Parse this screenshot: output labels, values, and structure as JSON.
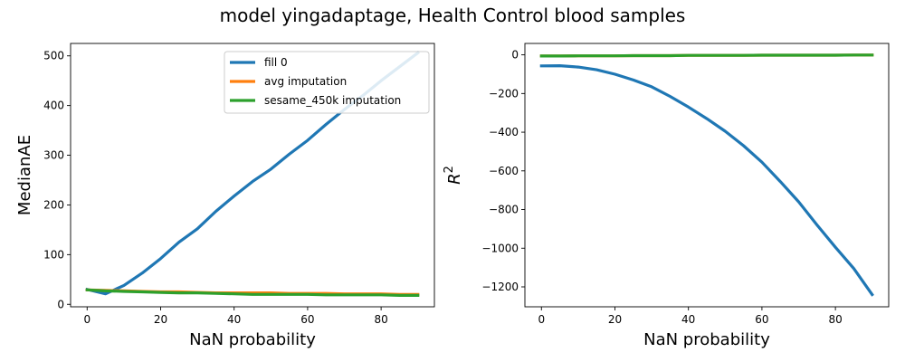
{
  "figure_title": "model yingadaptage, Health Control blood samples",
  "colors": {
    "fill0": "#1f77b4",
    "avg": "#ff7f0e",
    "sesame": "#2ca02c"
  },
  "chart_data": [
    {
      "type": "line",
      "xlabel": "NaN probability",
      "ylabel": "MedianAE",
      "xlim": [
        -4.5,
        94.5
      ],
      "ylim": [
        -5,
        525
      ],
      "xticks": [
        0,
        20,
        40,
        60,
        80
      ],
      "yticks": [
        0,
        100,
        200,
        300,
        400,
        500
      ],
      "grid": false,
      "legend_position": "top-right",
      "x": [
        0,
        5,
        10,
        15,
        20,
        25,
        30,
        35,
        40,
        45,
        50,
        55,
        60,
        65,
        70,
        75,
        80,
        85,
        90
      ],
      "series": [
        {
          "name": "fill 0",
          "color": "#1f77b4",
          "values": [
            30,
            21,
            38,
            63,
            92,
            125,
            152,
            187,
            218,
            247,
            272,
            302,
            330,
            362,
            392,
            420,
            450,
            478,
            506
          ]
        },
        {
          "name": "avg imputation",
          "color": "#ff7f0e",
          "values": [
            29,
            28,
            27,
            26,
            25,
            25,
            24,
            23,
            23,
            23,
            23,
            22,
            22,
            22,
            21,
            21,
            21,
            20,
            20
          ]
        },
        {
          "name": "sesame_450k imputation",
          "color": "#2ca02c",
          "values": [
            29,
            27,
            26,
            25,
            24,
            23,
            23,
            22,
            21,
            20,
            20,
            20,
            20,
            19,
            19,
            19,
            19,
            18,
            18
          ]
        }
      ]
    },
    {
      "type": "line",
      "xlabel": "NaN probability",
      "ylabel": "R",
      "ylabel_superscript": "2",
      "xlim": [
        -4.5,
        94.5
      ],
      "ylim": [
        -1303,
        59
      ],
      "xticks": [
        0,
        20,
        40,
        60,
        80
      ],
      "yticks": [
        0,
        -200,
        -400,
        -600,
        -800,
        -1000,
        -1200
      ],
      "ytick_labels": [
        "0",
        "−200",
        "−400",
        "−600",
        "−800",
        "−1000",
        "−1200"
      ],
      "grid": false,
      "x": [
        0,
        5,
        10,
        15,
        20,
        25,
        30,
        35,
        40,
        45,
        50,
        55,
        60,
        65,
        70,
        75,
        80,
        85,
        90
      ],
      "series": [
        {
          "color": "#1f77b4",
          "values": [
            -57,
            -56,
            -63,
            -77,
            -100,
            -130,
            -165,
            -215,
            -270,
            -330,
            -395,
            -470,
            -555,
            -655,
            -760,
            -880,
            -995,
            -1105,
            -1240
          ]
        },
        {
          "color": "#ff7f0e",
          "values": [
            -6,
            -6,
            -5,
            -5,
            -5,
            -4,
            -4,
            -4,
            -3,
            -3,
            -3,
            -3,
            -2,
            -2,
            -2,
            -2,
            -2,
            -1,
            -1
          ]
        },
        {
          "color": "#2ca02c",
          "values": [
            -6,
            -6,
            -5,
            -5,
            -5,
            -4,
            -4,
            -4,
            -3,
            -3,
            -3,
            -3,
            -2,
            -2,
            -2,
            -2,
            -2,
            -1,
            -1
          ]
        }
      ]
    }
  ]
}
